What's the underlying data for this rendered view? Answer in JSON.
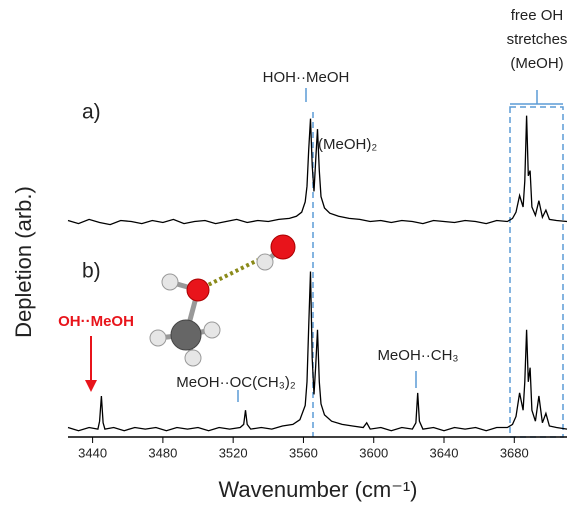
{
  "chart_data": [
    {
      "type": "line",
      "label": "a)",
      "ylabel": "Depletion (arb.)",
      "xlim": [
        3426,
        3710
      ],
      "ylim": [
        -0.12,
        1.18
      ],
      "color": "#000000",
      "annotations": [
        "HOH··MeOH",
        "(MeOH)₂",
        "free OH",
        "stretches",
        "(MeOH)"
      ],
      "x": [
        3426,
        3432,
        3438,
        3444,
        3450,
        3456,
        3462,
        3468,
        3474,
        3480,
        3486,
        3492,
        3498,
        3504,
        3510,
        3516,
        3522,
        3528,
        3534,
        3540,
        3546,
        3552,
        3556,
        3559,
        3561,
        3562,
        3563,
        3564,
        3565,
        3566,
        3567,
        3568,
        3569,
        3570,
        3572,
        3575,
        3580,
        3586,
        3592,
        3598,
        3604,
        3610,
        3616,
        3622,
        3628,
        3634,
        3640,
        3646,
        3652,
        3658,
        3664,
        3670,
        3676,
        3679,
        3681,
        3683,
        3685,
        3686,
        3687,
        3688,
        3689,
        3690,
        3692,
        3694,
        3696,
        3698,
        3700,
        3704,
        3710
      ],
      "values": [
        0.02,
        -0.01,
        0.03,
        0.0,
        -0.02,
        0.02,
        0.01,
        -0.01,
        0.02,
        0.0,
        0.03,
        -0.01,
        0.01,
        0.02,
        -0.01,
        0.01,
        0.03,
        0.0,
        0.02,
        0.01,
        0.03,
        0.04,
        0.06,
        0.1,
        0.2,
        0.35,
        0.7,
        1.0,
        0.55,
        0.3,
        0.6,
        0.9,
        0.5,
        0.25,
        0.14,
        0.09,
        0.06,
        0.04,
        0.03,
        0.01,
        0.02,
        0.0,
        0.02,
        0.01,
        -0.01,
        0.02,
        0.01,
        0.0,
        0.02,
        0.01,
        -0.01,
        0.02,
        0.01,
        0.04,
        0.1,
        0.26,
        0.15,
        0.4,
        1.03,
        0.45,
        0.5,
        0.15,
        0.07,
        0.21,
        0.05,
        0.12,
        0.03,
        0.02,
        0.01
      ]
    },
    {
      "type": "line",
      "label": "b)",
      "xlabel": "Wavenumber (cm⁻¹)",
      "xlim": [
        3426,
        3710
      ],
      "ylim": [
        -0.05,
        1.2
      ],
      "color": "#000000",
      "xticks": [
        3440,
        3480,
        3520,
        3560,
        3600,
        3640,
        3680
      ],
      "annotations": [
        "OH··MeOH",
        "MeOH··OC(CH₃)₂",
        "MeOH··CH₃"
      ],
      "x": [
        3426,
        3432,
        3438,
        3443,
        3444,
        3445,
        3446,
        3447,
        3452,
        3458,
        3464,
        3470,
        3476,
        3482,
        3488,
        3494,
        3500,
        3506,
        3512,
        3518,
        3524,
        3526,
        3527,
        3528,
        3530,
        3536,
        3542,
        3548,
        3554,
        3558,
        3561,
        3562,
        3563,
        3564,
        3565,
        3566,
        3567,
        3568,
        3569,
        3570,
        3572,
        3576,
        3582,
        3588,
        3594,
        3596,
        3598,
        3604,
        3610,
        3616,
        3622,
        3624,
        3625,
        3626,
        3628,
        3634,
        3640,
        3646,
        3652,
        3658,
        3664,
        3670,
        3676,
        3679,
        3681,
        3683,
        3685,
        3686,
        3687,
        3688,
        3689,
        3690,
        3692,
        3694,
        3696,
        3698,
        3700,
        3704,
        3710
      ],
      "values": [
        0.01,
        -0.01,
        0.01,
        0.0,
        0.05,
        0.21,
        0.04,
        0.0,
        0.01,
        -0.01,
        0.01,
        0.0,
        0.01,
        -0.01,
        0.01,
        0.0,
        0.01,
        -0.01,
        0.01,
        0.0,
        0.01,
        0.03,
        0.12,
        0.03,
        0.0,
        0.01,
        0.0,
        0.02,
        0.03,
        0.06,
        0.15,
        0.3,
        0.65,
        1.0,
        0.45,
        0.22,
        0.4,
        0.63,
        0.3,
        0.16,
        0.09,
        0.05,
        0.03,
        0.02,
        0.01,
        0.04,
        0.0,
        0.01,
        -0.01,
        0.01,
        0.0,
        0.04,
        0.23,
        0.05,
        0.0,
        0.01,
        -0.01,
        0.01,
        0.0,
        0.01,
        -0.01,
        0.01,
        0.01,
        0.03,
        0.08,
        0.23,
        0.12,
        0.3,
        0.63,
        0.3,
        0.39,
        0.12,
        0.05,
        0.21,
        0.04,
        0.1,
        0.02,
        0.01,
        0.0
      ]
    }
  ]
}
